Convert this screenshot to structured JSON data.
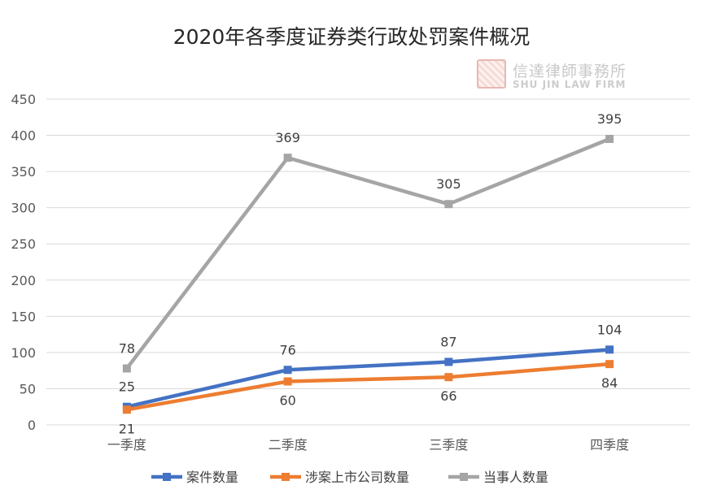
{
  "chart_data": {
    "type": "line",
    "title": "2020年各季度证券类行政处罚案件概况",
    "categories": [
      "一季度",
      "二季度",
      "三季度",
      "四季度"
    ],
    "series": [
      {
        "name": "案件数量",
        "values": [
          25,
          76,
          87,
          104
        ],
        "color": "#4472c4",
        "label_position": "above"
      },
      {
        "name": "涉案上市公司数量",
        "values": [
          21,
          60,
          66,
          84
        ],
        "color": "#ed7d31",
        "label_position": "below"
      },
      {
        "name": "当事人数量",
        "values": [
          78,
          369,
          305,
          395
        ],
        "color": "#a5a5a5",
        "label_position": "above"
      }
    ],
    "ylim": [
      0,
      450
    ],
    "yticks": [
      "0",
      "50",
      "100",
      "150",
      "200",
      "250",
      "300",
      "350",
      "400",
      "450"
    ],
    "grid": true,
    "legend_position": "bottom",
    "gridline_color": "#d9d9d9"
  },
  "watermark": {
    "chinese": "信達律師事務所",
    "english": "SHU JIN LAW FIRM"
  }
}
